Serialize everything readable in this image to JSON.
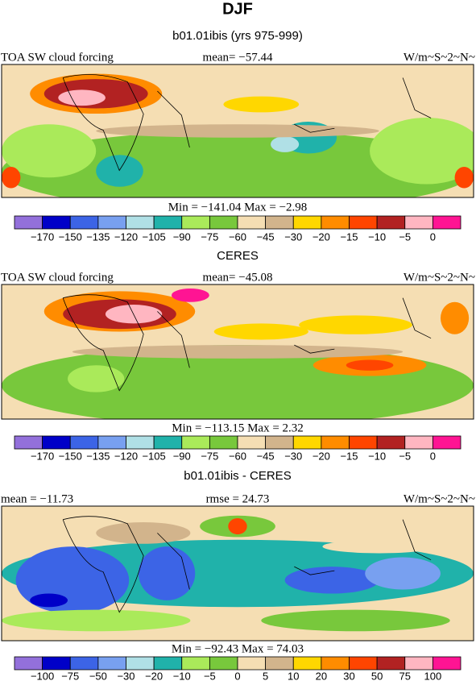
{
  "title": "DJF",
  "colors": [
    "#9370db",
    "#0000c8",
    "#3c64e6",
    "#78a0f0",
    "#b0e0e6",
    "#20b2aa",
    "#aaea5a",
    "#78c83c",
    "#f5deb3",
    "#d2b48c",
    "#ffd700",
    "#ff8c00",
    "#ff4500",
    "#b22222",
    "#ffb6c1",
    "#ff1493"
  ],
  "panels": [
    {
      "title": "b01.01ibis (yrs 975-999)",
      "left": "TOA SW cloud forcing",
      "center": "mean= −57.44",
      "right": "W/m~S~2~N~",
      "minmax": "Min = −141.04 Max =   −2.98",
      "levels": [
        "−170",
        "−150",
        "−135",
        "−120",
        "−105",
        "−90",
        "−75",
        "−60",
        "−45",
        "−30",
        "−20",
        "−15",
        "−10",
        "−5",
        "0"
      ]
    },
    {
      "title": "CERES",
      "left": "TOA SW cloud forcing",
      "center": "mean= −45.08",
      "right": "W/m~S~2~N~",
      "minmax": "Min = −113.15 Max =    2.32",
      "levels": [
        "−170",
        "−150",
        "−135",
        "−120",
        "−105",
        "−90",
        "−75",
        "−60",
        "−45",
        "−30",
        "−20",
        "−15",
        "−10",
        "−5",
        "0"
      ]
    },
    {
      "title": "b01.01ibis - CERES",
      "left": "mean = −11.73",
      "center": "rmse =  24.73",
      "right": "W/m~S~2~N~",
      "minmax": "Min = −92.43 Max =  74.03",
      "levels": [
        "−100",
        "−75",
        "−50",
        "−30",
        "−20",
        "−10",
        "−5",
        "0",
        "5",
        "10",
        "20",
        "30",
        "50",
        "75",
        "100"
      ]
    }
  ]
}
